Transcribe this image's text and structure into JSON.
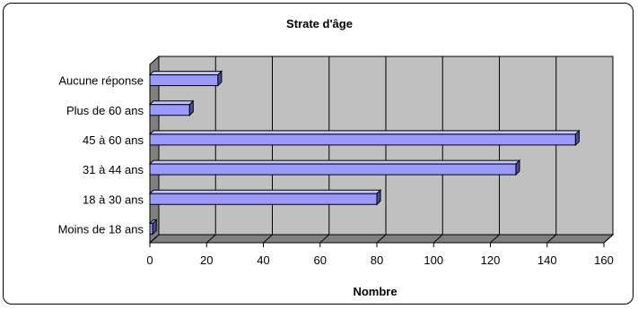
{
  "chart_data": {
    "type": "bar",
    "orientation": "horizontal",
    "title": "Strate d'âge",
    "xlabel": "Nombre",
    "ylabel": "",
    "categories": [
      "Moins de 18 ans",
      "18 à 30 ans",
      "31 à 44 ans",
      "45 à 60 ans",
      "Plus de 60 ans",
      "Aucune réponse"
    ],
    "values": [
      1,
      80,
      129,
      150,
      14,
      24
    ],
    "xlim": [
      0,
      160
    ],
    "xticks": [
      "0",
      "20",
      "40",
      "60",
      "80",
      "100",
      "120",
      "140",
      "160"
    ],
    "grid": true,
    "legend": "none",
    "style": "3d",
    "colors": {
      "bar": "#9999ff",
      "bar_top": "#c5c5ff",
      "bar_side": "#4c4c99",
      "wall": "#c0c0c0",
      "floor": "#808080"
    }
  }
}
